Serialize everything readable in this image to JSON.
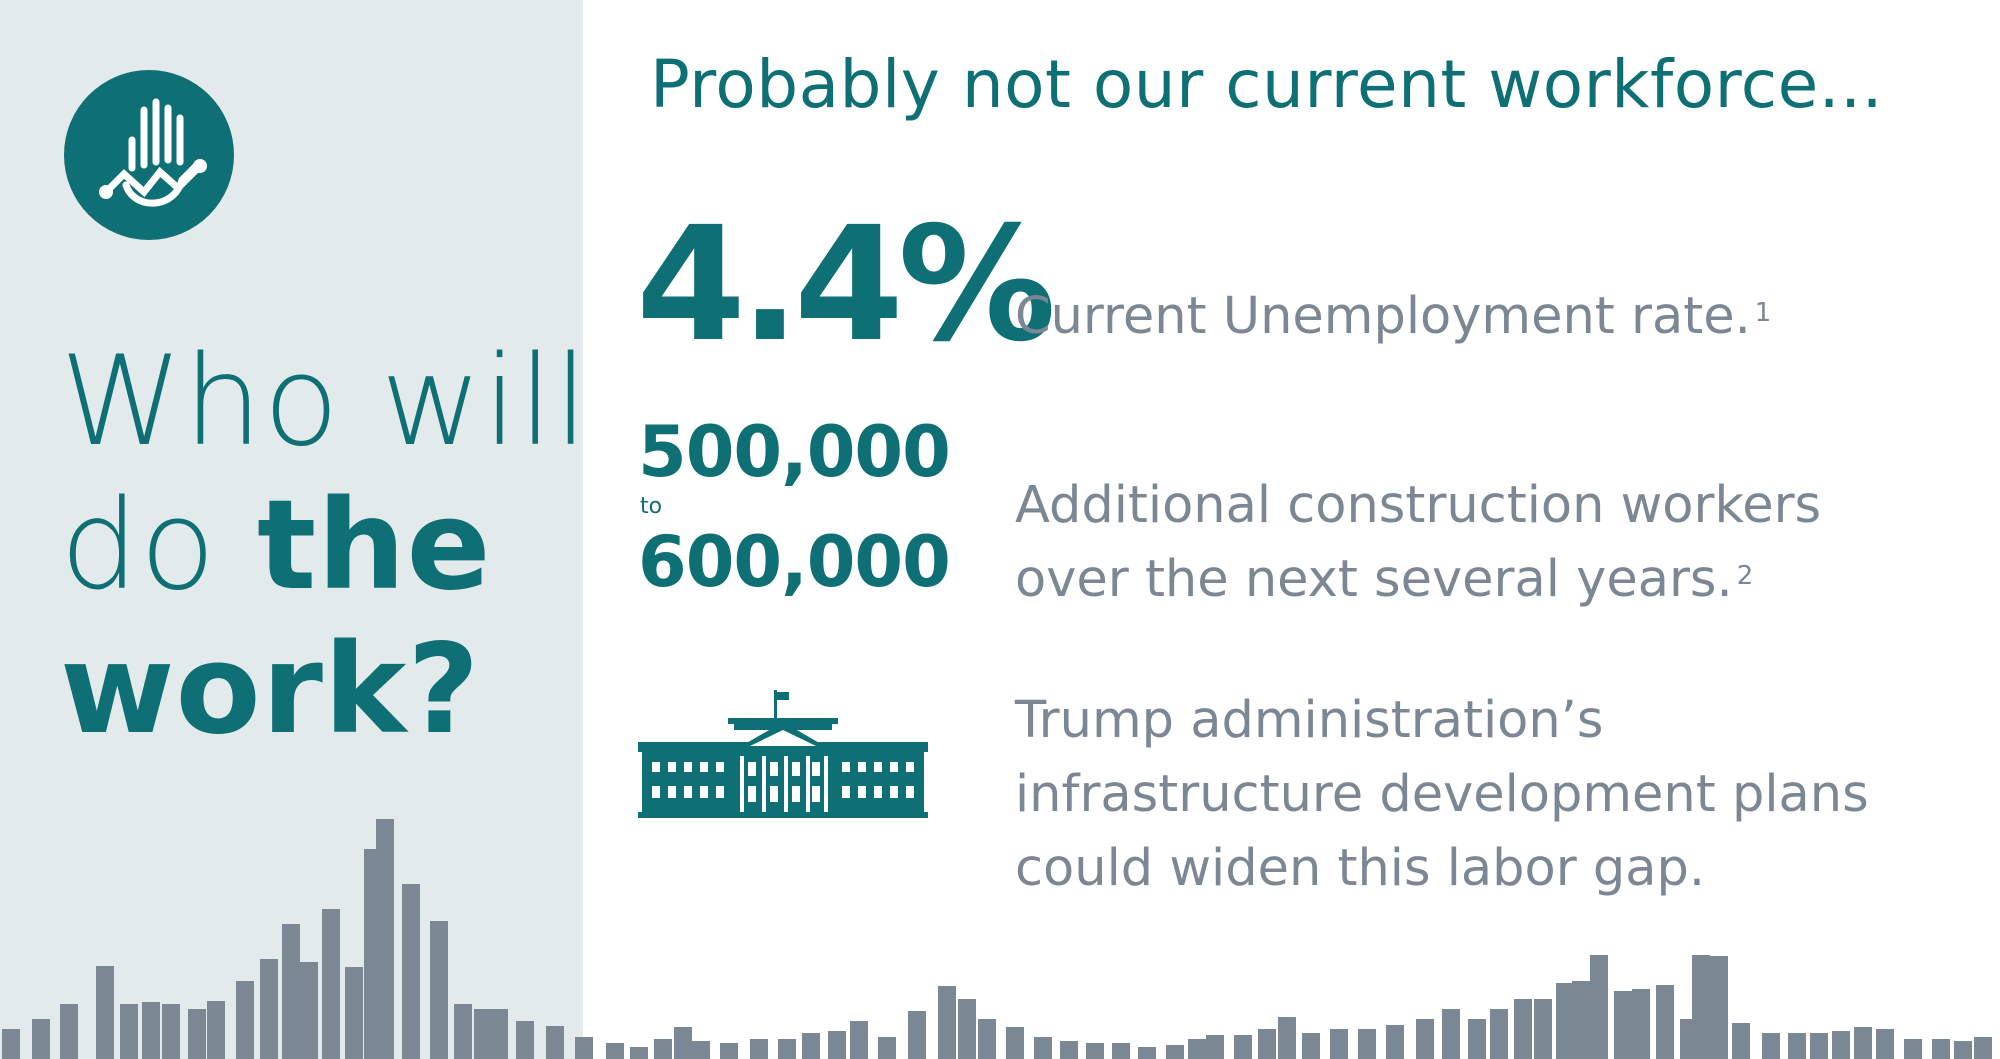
{
  "headline": {
    "line1": "Who will",
    "line2_light": "do ",
    "line2_bold": "the",
    "line3": "work?"
  },
  "subtitle": "Probably not our current workforce...",
  "stats": [
    {
      "value": "4.4%",
      "description": "Current Unemployment rate.",
      "footnote": "1"
    },
    {
      "value_from": "500,000",
      "connector": "to",
      "value_to": "600,000",
      "description_line1": "Additional construction workers",
      "description_line2": "over the next several years.",
      "footnote": "2"
    },
    {
      "icon": "white-house-icon",
      "description_line1": "Trump administration’s",
      "description_line2": "infrastructure development plans",
      "description_line3": "could widen this labor gap."
    }
  ],
  "logo": {
    "icon": "hand-chart-logo-icon"
  },
  "colors": {
    "teal": "#0e6f74",
    "gray_text": "#7c8794",
    "panel_bg": "#e3eaec",
    "bar_gray": "#7c8794"
  }
}
